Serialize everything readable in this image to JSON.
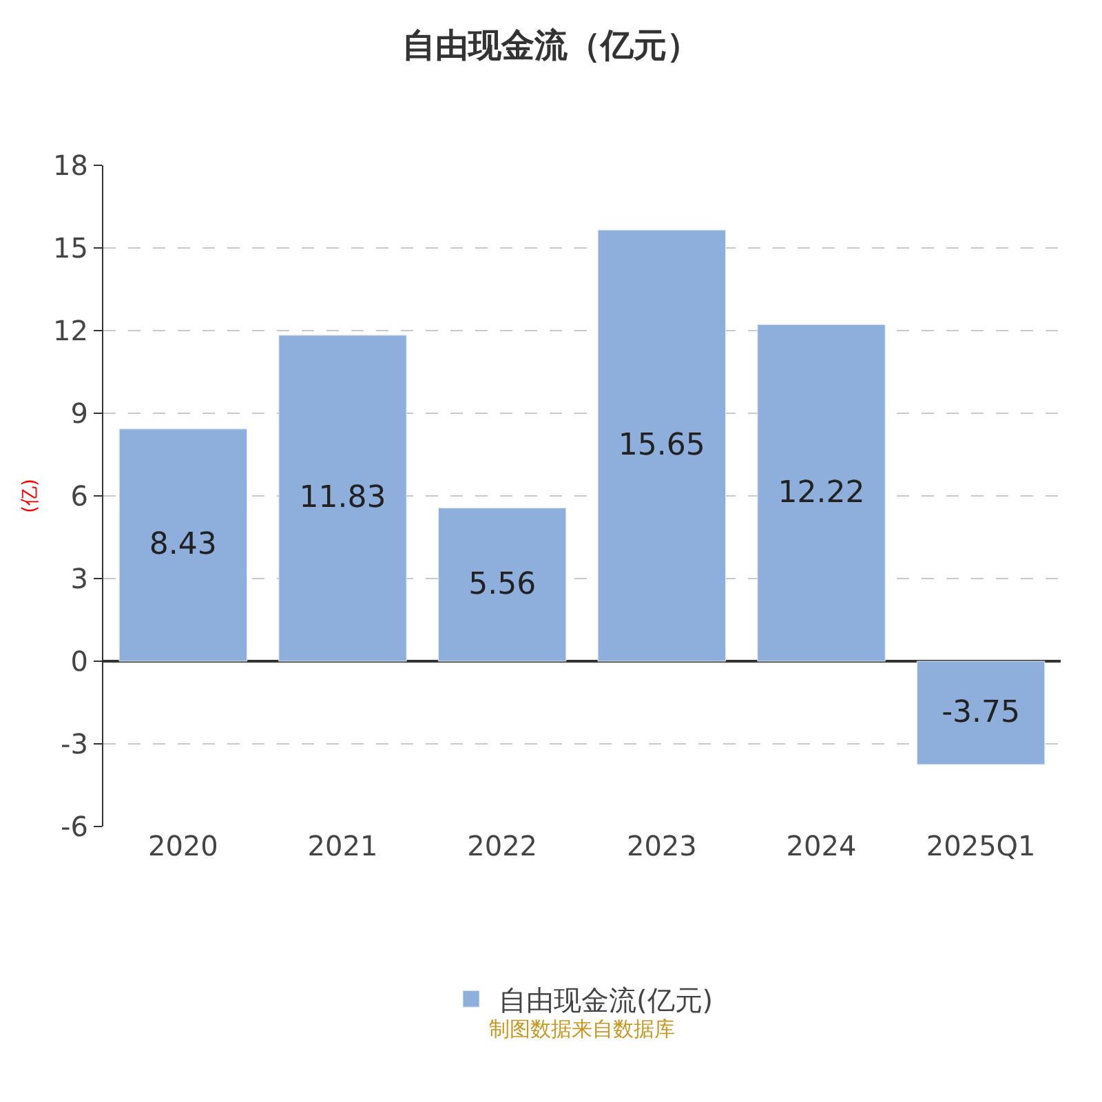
{
  "chart_data": {
    "type": "bar",
    "title": "自由现金流（亿元）",
    "ylabel": "(亿)",
    "categories": [
      "2020",
      "2021",
      "2022",
      "2023",
      "2024",
      "2025Q1"
    ],
    "series": [
      {
        "name": "自由现金流(亿元)",
        "color": "#8eaedb",
        "values": [
          8.43,
          11.83,
          5.56,
          15.65,
          12.22,
          -3.75
        ]
      }
    ],
    "ylim": [
      -6,
      18
    ],
    "yticks": [
      -6,
      -3,
      0,
      3,
      6,
      9,
      12,
      15,
      18
    ],
    "grid": "y",
    "data_labels": true,
    "legend": "bottom",
    "annotations": [
      "制图数据来自数据库"
    ]
  }
}
